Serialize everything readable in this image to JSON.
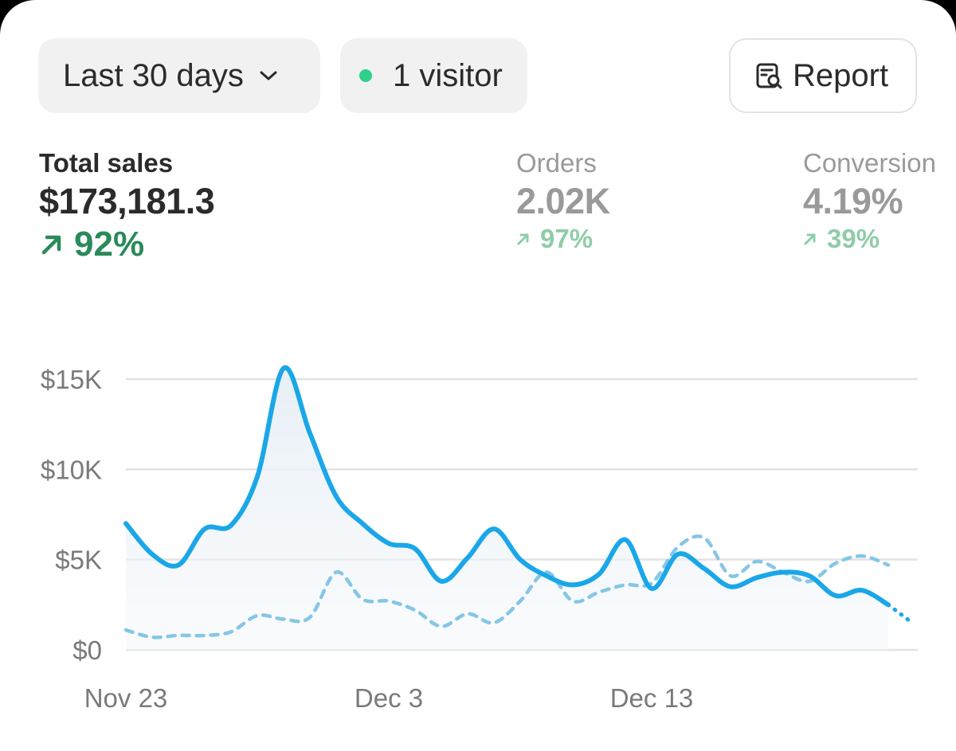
{
  "filters": {
    "date_range": "Last 30 days",
    "visitors": "1 visitor",
    "report_label": "Report",
    "visitor_dot_color": "#2ed18a"
  },
  "metrics": [
    {
      "label": "Total sales",
      "value": "$173,181.3",
      "delta": "92%",
      "active": true
    },
    {
      "label": "Orders",
      "value": "2.02K",
      "delta": "97%",
      "active": false
    },
    {
      "label": "Conversion",
      "value": "4.19%",
      "delta": "39%",
      "active": false
    }
  ],
  "colors": {
    "current": "#1aa7e8",
    "previous": "#86c6e6",
    "up_active": "#2a8a5a",
    "up_muted": "#8fcca9"
  },
  "chart_data": {
    "type": "line",
    "y_ticks": [
      "$15K",
      "$10K",
      "$5K",
      "$0"
    ],
    "x_ticks": [
      "Nov 23",
      "Dec 3",
      "Dec 13"
    ],
    "ylim": [
      0,
      15000
    ],
    "series": [
      {
        "name": "current",
        "style": "solid",
        "values": [
          7000,
          5300,
          4700,
          6700,
          6900,
          9600,
          15600,
          12000,
          8500,
          7000,
          5900,
          5600,
          3800,
          5100,
          6700,
          5000,
          4100,
          3600,
          4200,
          6100,
          3400,
          5300,
          4500,
          3500,
          4000,
          4300,
          4100,
          3000,
          3300,
          2500
        ]
      },
      {
        "name": "previous",
        "style": "dashed",
        "values": [
          1100,
          700,
          800,
          800,
          1000,
          1900,
          1700,
          1800,
          4300,
          2800,
          2700,
          2200,
          1300,
          2000,
          1500,
          2700,
          4300,
          2700,
          3200,
          3600,
          3700,
          5700,
          6200,
          4100,
          4900,
          4300,
          3800,
          4800,
          5200,
          4700
        ]
      }
    ],
    "projection": {
      "from": 2500,
      "to": 1500
    }
  }
}
